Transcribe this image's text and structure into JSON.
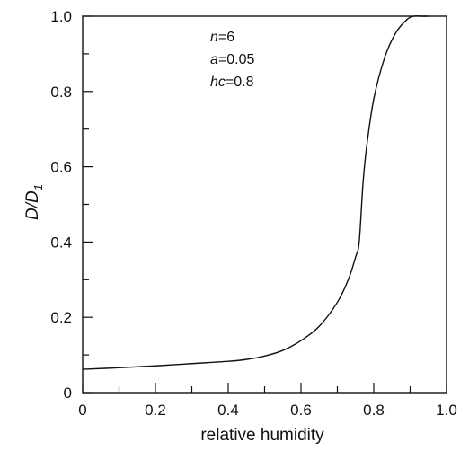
{
  "chart_data": {
    "type": "line",
    "title": "",
    "xlabel": "relative humidity",
    "ylabel": {
      "main": "D/D",
      "sub": "1"
    },
    "xlim": [
      0,
      1.0
    ],
    "ylim": [
      0,
      1.0
    ],
    "x_tick_labels": [
      "0",
      "0.2",
      "0.4",
      "0.6",
      "0.8",
      "1.0"
    ],
    "x_tick_values": [
      0,
      0.2,
      0.4,
      0.6,
      0.8,
      1.0
    ],
    "x_minor_tick_values": [
      0.1,
      0.3,
      0.5,
      0.7,
      0.9
    ],
    "y_tick_labels": [
      "0",
      "0.2",
      "0.4",
      "0.6",
      "0.8",
      "1.0"
    ],
    "y_tick_values": [
      0,
      0.2,
      0.4,
      0.6,
      0.8,
      1.0
    ],
    "y_minor_tick_values": [
      0.1,
      0.3,
      0.5,
      0.7,
      0.9
    ],
    "grid": false,
    "annotations": [
      {
        "var": "n",
        "text": "=6"
      },
      {
        "var": "a",
        "text": "=0.05"
      },
      {
        "var": "hc",
        "text": "=0.8"
      }
    ],
    "series": [
      {
        "x": [
          0,
          0.1,
          0.2,
          0.3,
          0.4,
          0.45,
          0.5,
          0.55,
          0.6,
          0.65,
          0.7,
          0.73,
          0.75,
          0.76,
          0.77,
          0.78,
          0.8,
          0.83,
          0.86,
          0.89,
          0.91,
          0.93,
          0.95
        ],
        "y": [
          0.062,
          0.066,
          0.071,
          0.077,
          0.083,
          0.088,
          0.097,
          0.112,
          0.138,
          0.176,
          0.24,
          0.3,
          0.36,
          0.4,
          0.55,
          0.65,
          0.78,
          0.89,
          0.955,
          0.99,
          1.0,
          1.0,
          1.0
        ]
      }
    ]
  }
}
